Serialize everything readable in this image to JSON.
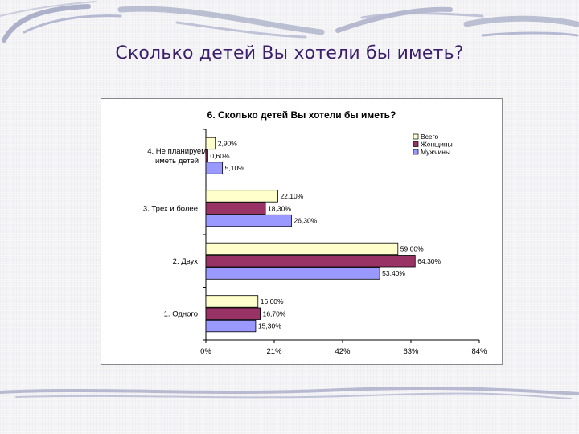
{
  "slide": {
    "title": "Сколько детей Вы хотели бы иметь?"
  },
  "colors": {
    "series_all": "#ffffcc",
    "series_women": "#993366",
    "series_men": "#9999ff",
    "title": "#3b1f6b"
  },
  "chart_data": {
    "type": "bar",
    "orientation": "horizontal",
    "title": "6. Сколько детей Вы хотели бы иметь?",
    "categories": [
      "1. Одного",
      "2. Двух",
      "3. Трех и более",
      "4. Не планируем иметь детей"
    ],
    "series": [
      {
        "name": "Всего",
        "values": [
          16.0,
          59.0,
          22.1,
          2.9
        ],
        "labels": [
          "16,00%",
          "59,00%",
          "22,10%",
          "2,90%"
        ]
      },
      {
        "name": "Женщины",
        "values": [
          16.7,
          64.3,
          18.3,
          0.6
        ],
        "labels": [
          "16,70%",
          "64,30%",
          "18,30%",
          "0,60%"
        ]
      },
      {
        "name": "Мужчины",
        "values": [
          15.3,
          53.4,
          26.3,
          5.1
        ],
        "labels": [
          "15,30%",
          "53,40%",
          "26,30%",
          "5,10%"
        ]
      }
    ],
    "xlim": [
      0,
      84
    ],
    "ticks": [
      0,
      21,
      42,
      63,
      84
    ],
    "tick_labels": [
      "0%",
      "21%",
      "42%",
      "63%",
      "84%"
    ],
    "grid": false,
    "legend_position": "top-right"
  }
}
